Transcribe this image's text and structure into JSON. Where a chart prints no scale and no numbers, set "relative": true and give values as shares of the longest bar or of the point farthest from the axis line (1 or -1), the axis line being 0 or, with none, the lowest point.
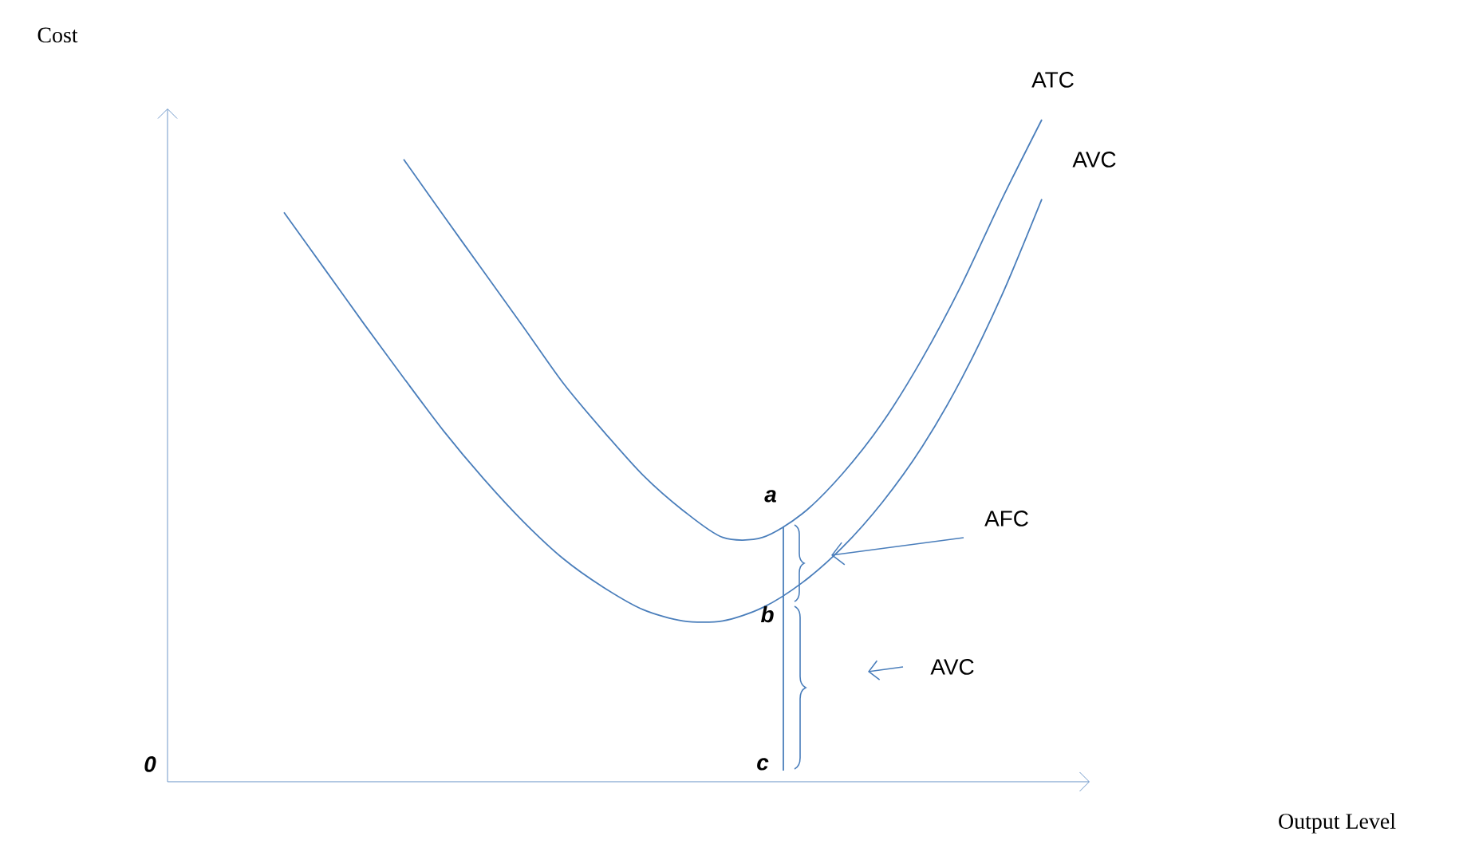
{
  "chart_data": {
    "type": "line",
    "relative": true,
    "categories": [
      null,
      null,
      null,
      null,
      null,
      null,
      null,
      null,
      null,
      null,
      null,
      null,
      null,
      null,
      null,
      null,
      null,
      null,
      null,
      null
    ],
    "series": [
      {
        "name": "ATC",
        "color": "#4a7ebb",
        "values": [
          null,
          null,
          null,
          0.94,
          0.855,
          0.771,
          0.687,
          0.602,
          0.53,
          0.463,
          0.41,
          0.369,
          0.369,
          0.405,
          0.465,
          0.542,
          0.639,
          0.752,
          0.88,
          1
        ]
      },
      {
        "name": "AVC",
        "color": "#4a7ebb",
        "values": [
          0.86,
          0.776,
          0.692,
          0.61,
          0.53,
          0.458,
          0.393,
          0.337,
          0.294,
          0.26,
          0.243,
          0.243,
          0.263,
          0.301,
          0.354,
          0.422,
          0.506,
          0.61,
          0.735,
          0.88
        ]
      }
    ],
    "annotations": [
      "0",
      "a",
      "b",
      "c",
      "AFC",
      "AVC",
      "Cost",
      "Output Level"
    ]
  }
}
